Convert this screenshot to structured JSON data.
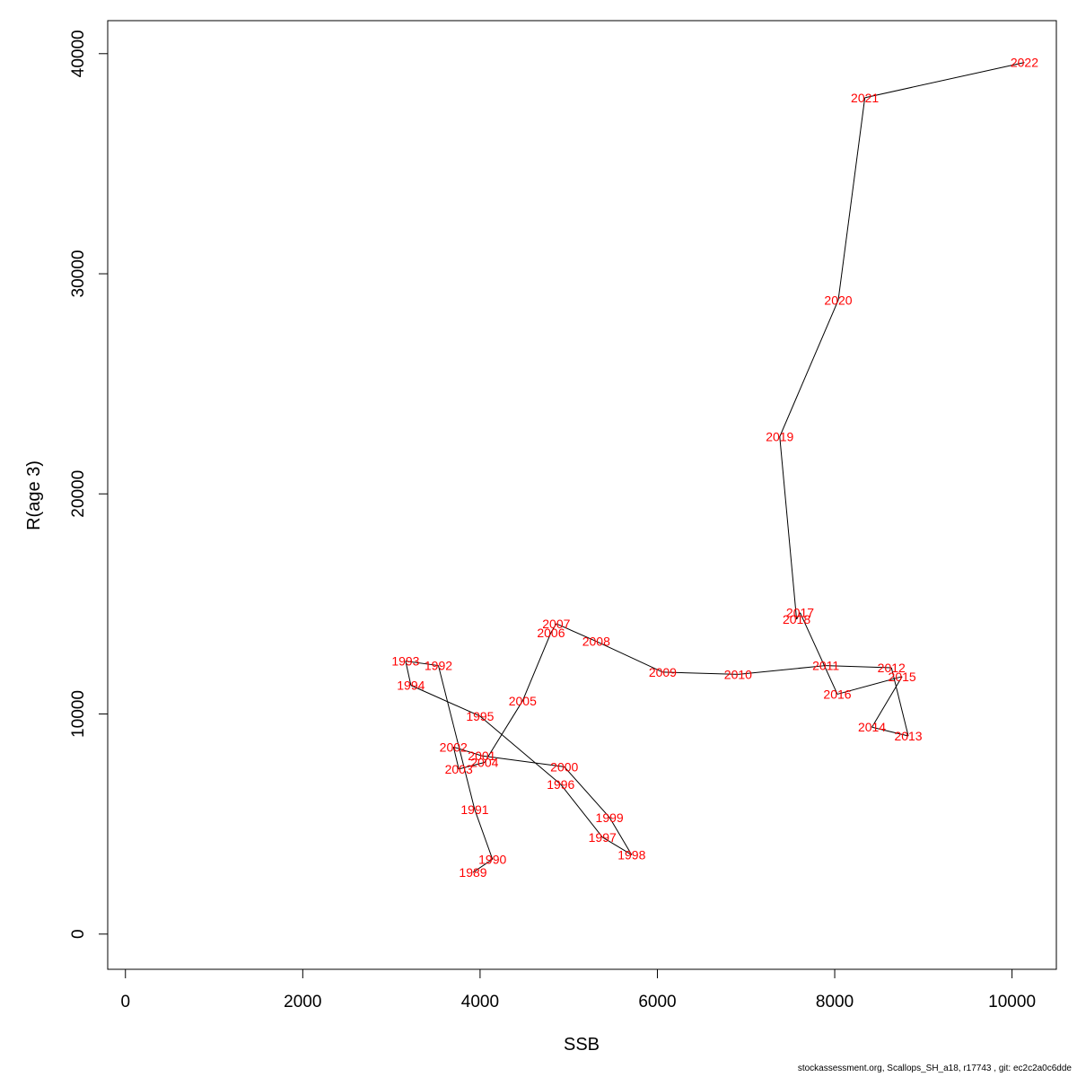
{
  "chart_data": {
    "type": "scatter",
    "xlabel": "SSB",
    "ylabel": "R(age 3)",
    "xlim": [
      -200,
      10500
    ],
    "ylim": [
      -1600,
      41500
    ],
    "xticks": [
      0,
      2000,
      4000,
      6000,
      8000,
      10000
    ],
    "yticks": [
      0,
      10000,
      20000,
      30000,
      40000
    ],
    "grid": false,
    "line_color": "#000000",
    "label_color": "#ff0000",
    "points": [
      {
        "label": "1989",
        "x": 3920,
        "y": 2800
      },
      {
        "label": "1990",
        "x": 4140,
        "y": 3400
      },
      {
        "label": "1991",
        "x": 3940,
        "y": 5650
      },
      {
        "label": "1992",
        "x": 3530,
        "y": 12200
      },
      {
        "label": "1993",
        "x": 3160,
        "y": 12400
      },
      {
        "label": "1994",
        "x": 3220,
        "y": 11300
      },
      {
        "label": "1995",
        "x": 4000,
        "y": 9900
      },
      {
        "label": "1996",
        "x": 4910,
        "y": 6800
      },
      {
        "label": "1997",
        "x": 5380,
        "y": 4400
      },
      {
        "label": "1998",
        "x": 5710,
        "y": 3600
      },
      {
        "label": "1999",
        "x": 5460,
        "y": 5300
      },
      {
        "label": "2000",
        "x": 4950,
        "y": 7600
      },
      {
        "label": "2001",
        "x": 4020,
        "y": 8100
      },
      {
        "label": "2002",
        "x": 3700,
        "y": 8500
      },
      {
        "label": "2003",
        "x": 3760,
        "y": 7500
      },
      {
        "label": "2004",
        "x": 4050,
        "y": 7800
      },
      {
        "label": "2005",
        "x": 4480,
        "y": 10600
      },
      {
        "label": "2006",
        "x": 4800,
        "y": 13700
      },
      {
        "label": "2007",
        "x": 4860,
        "y": 14100
      },
      {
        "label": "2008",
        "x": 5310,
        "y": 13300
      },
      {
        "label": "2009",
        "x": 6060,
        "y": 11900
      },
      {
        "label": "2010",
        "x": 6910,
        "y": 11800
      },
      {
        "label": "2011",
        "x": 7900,
        "y": 12200
      },
      {
        "label": "2012",
        "x": 8640,
        "y": 12100
      },
      {
        "label": "2013",
        "x": 8830,
        "y": 9000
      },
      {
        "label": "2014",
        "x": 8420,
        "y": 9400
      },
      {
        "label": "2015",
        "x": 8760,
        "y": 11700
      },
      {
        "label": "2016",
        "x": 8030,
        "y": 10900
      },
      {
        "label": "2017",
        "x": 7610,
        "y": 14600
      },
      {
        "label": "2018",
        "x": 7570,
        "y": 14300
      },
      {
        "label": "2019",
        "x": 7380,
        "y": 22600
      },
      {
        "label": "2020",
        "x": 8040,
        "y": 28800
      },
      {
        "label": "2021",
        "x": 8340,
        "y": 38000
      },
      {
        "label": "2022",
        "x": 10140,
        "y": 39600
      }
    ]
  },
  "footer": "stockassessment.org, Scallops_SH_a18, r17743 , git: ec2c2a0c6dde"
}
